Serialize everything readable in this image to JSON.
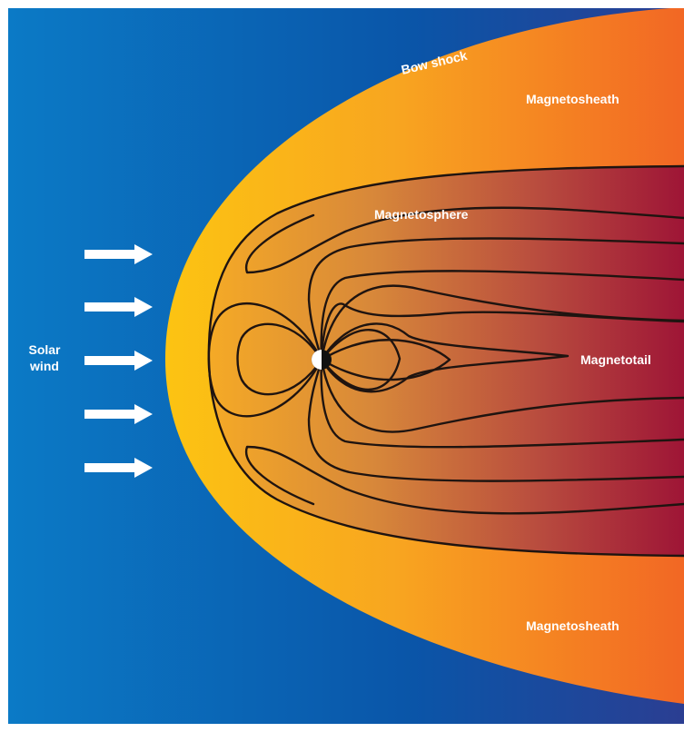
{
  "labels": {
    "bow_shock": "Bow shock",
    "magnetosheath_top": "Magnetosheath",
    "magnetosheath_bottom": "Magnetosheath",
    "magnetosphere": "Magnetosphere",
    "magnetotail": "Magnetotail",
    "solar_wind_line1": "Solar",
    "solar_wind_line2": "wind"
  },
  "colors": {
    "solar_wind_region": "#0a5fae",
    "magnetosheath_inner": "#fcb712",
    "magnetosheath_outer": "#f26a24",
    "magnetosphere_inner": "#f0a02a",
    "magnetosphere_outer": "#a3183a",
    "field_lines": "#1f1410",
    "arrows": "#ffffff"
  }
}
